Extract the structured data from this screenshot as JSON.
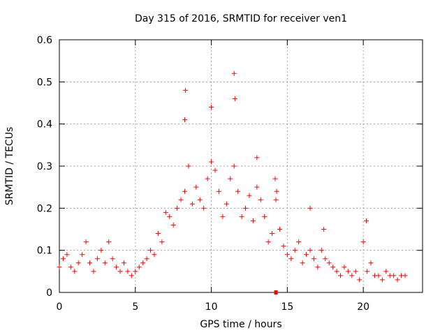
{
  "chart_data": {
    "type": "scatter",
    "title": "Day 315 of 2016, SRMTID for receiver ven1",
    "xlabel": "GPS time / hours",
    "ylabel": "SRMTID / TECUs",
    "xlim": [
      0,
      23.9
    ],
    "ylim": [
      0,
      0.6
    ],
    "xticks": [
      0,
      5,
      10,
      15,
      20
    ],
    "yticks": [
      0,
      0.1,
      0.2,
      0.3,
      0.4,
      0.5,
      0.6
    ],
    "xtick_labels": [
      "0",
      "5",
      "10",
      "15",
      "20"
    ],
    "ytick_labels": [
      "0",
      "0.1",
      "0.2",
      "0.3",
      "0.4",
      "0.5",
      "0.6"
    ],
    "grid": true,
    "marker": "+",
    "color": "#ff0000",
    "series": [
      {
        "name": "SRMTID",
        "x": [
          0.0,
          0.25,
          0.5,
          0.75,
          1.0,
          1.25,
          1.5,
          1.75,
          2.0,
          2.25,
          2.5,
          2.75,
          3.0,
          3.25,
          3.5,
          3.75,
          4.0,
          4.25,
          4.5,
          4.75,
          5.0,
          5.25,
          5.5,
          5.75,
          6.0,
          6.25,
          6.5,
          6.75,
          7.0,
          7.25,
          7.5,
          7.75,
          8.0,
          8.25,
          8.5,
          8.75,
          9.0,
          9.25,
          9.5,
          9.75,
          10.0,
          10.25,
          10.5,
          10.75,
          11.0,
          11.25,
          11.5,
          11.75,
          12.0,
          12.25,
          12.5,
          12.75,
          13.0,
          13.25,
          13.5,
          13.75,
          14.0,
          14.25,
          14.5,
          14.75,
          15.0,
          15.25,
          15.5,
          15.75,
          16.0,
          16.25,
          16.5,
          16.75,
          17.0,
          17.25,
          17.5,
          17.75,
          18.0,
          18.25,
          18.5,
          18.75,
          19.0,
          19.25,
          19.5,
          19.75,
          20.0,
          20.25,
          20.5,
          20.75,
          21.0,
          21.25,
          21.5,
          21.75,
          22.0,
          22.25,
          22.5,
          22.75,
          8.25,
          8.3,
          10.0,
          11.5,
          11.55,
          13.0,
          14.2,
          14.3,
          16.5,
          17.4,
          20.2
        ],
        "y": [
          0.06,
          0.08,
          0.09,
          0.06,
          0.05,
          0.07,
          0.09,
          0.12,
          0.07,
          0.05,
          0.08,
          0.1,
          0.07,
          0.12,
          0.08,
          0.06,
          0.05,
          0.07,
          0.05,
          0.04,
          0.05,
          0.06,
          0.07,
          0.08,
          0.1,
          0.09,
          0.14,
          0.12,
          0.19,
          0.18,
          0.16,
          0.2,
          0.22,
          0.24,
          0.3,
          0.21,
          0.25,
          0.22,
          0.2,
          0.27,
          0.31,
          0.29,
          0.24,
          0.18,
          0.21,
          0.27,
          0.3,
          0.24,
          0.18,
          0.2,
          0.23,
          0.17,
          0.25,
          0.22,
          0.18,
          0.12,
          0.14,
          0.22,
          0.15,
          0.11,
          0.09,
          0.08,
          0.1,
          0.12,
          0.07,
          0.09,
          0.1,
          0.08,
          0.06,
          0.1,
          0.08,
          0.07,
          0.06,
          0.05,
          0.04,
          0.06,
          0.05,
          0.04,
          0.05,
          0.03,
          0.12,
          0.05,
          0.07,
          0.04,
          0.04,
          0.03,
          0.05,
          0.04,
          0.04,
          0.03,
          0.04,
          0.04,
          0.41,
          0.48,
          0.44,
          0.52,
          0.46,
          0.32,
          0.27,
          0.24,
          0.2,
          0.15,
          0.17
        ]
      }
    ],
    "annotations": [
      {
        "type": "marker",
        "x": 14.25,
        "y": 0.0,
        "shape": "square"
      }
    ]
  }
}
